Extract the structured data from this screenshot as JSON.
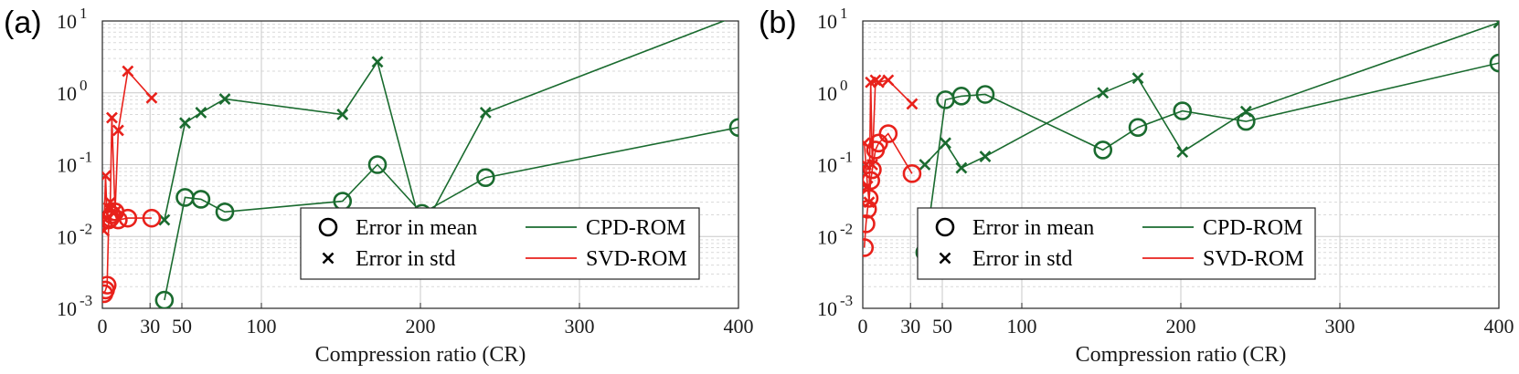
{
  "colors": {
    "cpd": "#1a6b2f",
    "svd": "#e8211b"
  },
  "chart_data": [
    {
      "type": "line",
      "panel_label": "(a)",
      "xlabel": "Compression ratio (CR)",
      "ylabel": "",
      "yscale": "log",
      "xlim": [
        0,
        400
      ],
      "ylim": [
        0.001,
        10
      ],
      "x_ticks": [
        0,
        30,
        50,
        100,
        200,
        300,
        400
      ],
      "x_tick_labels": [
        "0",
        "30",
        "50",
        "100",
        "200",
        "300",
        "400"
      ],
      "y_tick_labels": [
        {
          "base": "10",
          "exp": "-3",
          "value": 0.001
        },
        {
          "base": "10",
          "exp": "-2",
          "value": 0.01
        },
        {
          "base": "10",
          "exp": "-1",
          "value": 0.1
        },
        {
          "base": "10",
          "exp": "0",
          "value": 1
        },
        {
          "base": "10",
          "exp": "1",
          "value": 10
        }
      ],
      "legend": {
        "position": "bottom-right",
        "entries": [
          "Error in mean",
          "Error in std",
          "CPD-ROM",
          "SVD-ROM"
        ]
      },
      "series": [
        {
          "name": "CPD-ROM",
          "metric": "Error in mean",
          "marker": "circle",
          "x": [
            39,
            52,
            62,
            77,
            151,
            173,
            201,
            241,
            400
          ],
          "y": [
            0.0013,
            0.035,
            0.033,
            0.022,
            0.031,
            0.1,
            0.021,
            0.066,
            0.33
          ]
        },
        {
          "name": "CPD-ROM",
          "metric": "Error in std",
          "marker": "x",
          "x": [
            39,
            52,
            62,
            77,
            151,
            173,
            201,
            241,
            400
          ],
          "y": [
            0.017,
            0.38,
            0.53,
            0.82,
            0.5,
            2.7,
            0.012,
            0.53,
            12
          ]
        },
        {
          "name": "SVD-ROM",
          "metric": "Error in mean",
          "marker": "circle",
          "x": [
            1,
            2,
            3,
            4,
            5,
            6,
            8,
            10,
            16,
            31
          ],
          "y": [
            0.0016,
            0.0018,
            0.0021,
            0.017,
            0.018,
            0.02,
            0.022,
            0.017,
            0.018,
            0.018
          ]
        },
        {
          "name": "SVD-ROM",
          "metric": "Error in std",
          "marker": "x",
          "x": [
            1,
            2,
            3,
            4,
            5,
            6,
            8,
            10,
            16,
            31
          ],
          "y": [
            0.012,
            0.07,
            0.018,
            0.025,
            0.03,
            0.45,
            0.022,
            0.3,
            2.0,
            0.85
          ]
        }
      ]
    },
    {
      "type": "line",
      "panel_label": "(b)",
      "xlabel": "Compression ratio (CR)",
      "ylabel": "",
      "yscale": "log",
      "xlim": [
        0,
        400
      ],
      "ylim": [
        0.001,
        10
      ],
      "x_ticks": [
        0,
        30,
        50,
        100,
        200,
        300,
        400
      ],
      "x_tick_labels": [
        "0",
        "30",
        "50",
        "100",
        "200",
        "300",
        "400"
      ],
      "y_tick_labels": [
        {
          "base": "10",
          "exp": "-3",
          "value": 0.001
        },
        {
          "base": "10",
          "exp": "-2",
          "value": 0.01
        },
        {
          "base": "10",
          "exp": "-1",
          "value": 0.1
        },
        {
          "base": "10",
          "exp": "0",
          "value": 1
        },
        {
          "base": "10",
          "exp": "1",
          "value": 10
        }
      ],
      "legend": {
        "position": "bottom-right",
        "entries": [
          "Error in mean",
          "Error in std",
          "CPD-ROM",
          "SVD-ROM"
        ]
      },
      "series": [
        {
          "name": "CPD-ROM",
          "metric": "Error in mean",
          "marker": "circle",
          "x": [
            39,
            52,
            62,
            77,
            151,
            173,
            201,
            241,
            400
          ],
          "y": [
            0.006,
            0.8,
            0.9,
            0.95,
            0.16,
            0.33,
            0.56,
            0.4,
            2.6
          ]
        },
        {
          "name": "CPD-ROM",
          "metric": "Error in std",
          "marker": "x",
          "x": [
            39,
            52,
            62,
            77,
            151,
            173,
            201,
            241,
            400
          ],
          "y": [
            0.1,
            0.2,
            0.09,
            0.13,
            1.0,
            1.6,
            0.15,
            0.55,
            9.5
          ]
        },
        {
          "name": "SVD-ROM",
          "metric": "Error in mean",
          "marker": "circle",
          "x": [
            1,
            2,
            3,
            4,
            5,
            6,
            8,
            10,
            16,
            31
          ],
          "y": [
            0.007,
            0.015,
            0.024,
            0.034,
            0.06,
            0.085,
            0.16,
            0.2,
            0.27,
            0.075
          ]
        },
        {
          "name": "SVD-ROM",
          "metric": "Error in std",
          "marker": "x",
          "x": [
            1,
            2,
            3,
            4,
            5,
            6,
            8,
            10,
            16,
            31
          ],
          "y": [
            0.2,
            0.1,
            0.05,
            0.03,
            1.4,
            0.1,
            1.5,
            1.4,
            1.5,
            0.7
          ]
        }
      ]
    }
  ]
}
